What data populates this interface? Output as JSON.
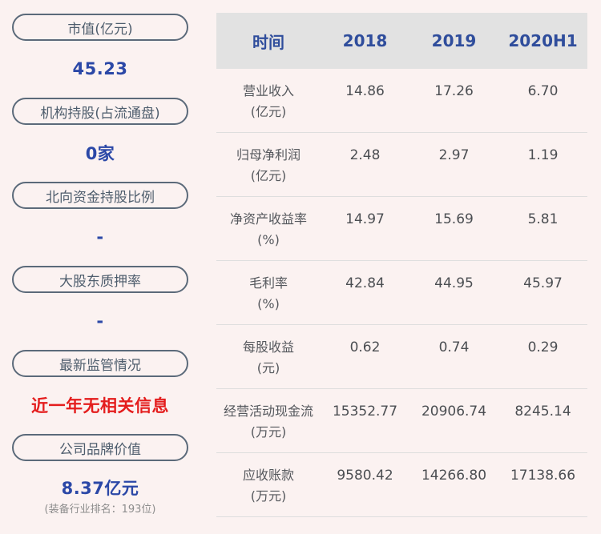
{
  "sidebar": {
    "stats": [
      {
        "label": "市值(亿元)",
        "value": "45.23"
      },
      {
        "label": "机构持股(占流通盘)",
        "value": "0家"
      },
      {
        "label": "北向资金持股比例",
        "value": "-"
      },
      {
        "label": "大股东质押率",
        "value": "-"
      },
      {
        "label": "最新监管情况",
        "value": "近一年无相关信息"
      },
      {
        "label": "公司品牌价值",
        "value": "8.37亿元",
        "note": "(装备行业排名：193位)"
      }
    ]
  },
  "table": {
    "header": [
      "时间",
      "2018",
      "2019",
      "2020H1"
    ],
    "rows": [
      {
        "name": "营业收入",
        "unit": "(亿元)",
        "values": [
          "14.86",
          "17.26",
          "6.70"
        ]
      },
      {
        "name": "归母净利润",
        "unit": "(亿元)",
        "values": [
          "2.48",
          "2.97",
          "1.19"
        ]
      },
      {
        "name": "净资产收益率",
        "unit": "(%)",
        "values": [
          "14.97",
          "15.69",
          "5.81"
        ]
      },
      {
        "name": "毛利率",
        "unit": "(%)",
        "values": [
          "42.84",
          "44.95",
          "45.97"
        ]
      },
      {
        "name": "每股收益",
        "unit": "(元)",
        "values": [
          "0.62",
          "0.74",
          "0.29"
        ]
      },
      {
        "name": "经营活动现金流",
        "unit": "(万元)",
        "values": [
          "15352.77",
          "20906.74",
          "8245.14"
        ]
      },
      {
        "name": "应收账款",
        "unit": "(万元)",
        "values": [
          "9580.42",
          "14266.80",
          "17138.66"
        ]
      }
    ]
  },
  "chart_data": {
    "type": "table",
    "columns": [
      "时间",
      "2018",
      "2019",
      "2020H1"
    ],
    "rows": [
      [
        "营业收入(亿元)",
        14.86,
        17.26,
        6.7
      ],
      [
        "归母净利润(亿元)",
        2.48,
        2.97,
        1.19
      ],
      [
        "净资产收益率(%)",
        14.97,
        15.69,
        5.81
      ],
      [
        "毛利率(%)",
        42.84,
        44.95,
        45.97
      ],
      [
        "每股收益(元)",
        0.62,
        0.74,
        0.29
      ],
      [
        "经营活动现金流(万元)",
        15352.77,
        20906.74,
        8245.14
      ],
      [
        "应收账款(万元)",
        9580.42,
        14266.8,
        17138.66
      ]
    ],
    "side_stats": {
      "市值(亿元)": "45.23",
      "机构持股(占流通盘)": "0家",
      "北向资金持股比例": "-",
      "大股东质押率": "-",
      "最新监管情况": "近一年无相关信息",
      "公司品牌价值": "8.37亿元",
      "公司品牌价值备注": "(装备行业排名：193位)"
    }
  },
  "colors": {
    "background": "#fbf2f1",
    "table_header_bg": "#e2e2e2",
    "table_header_text": "#2f4d9c",
    "stat_value_blue": "#2b48a7",
    "alert_red": "#e41d1d",
    "pill_border": "#5b6a7a",
    "pill_text": "#4e5d6d",
    "table_text": "#4b4e52",
    "note_gray": "#8d8d8d",
    "divider": "#dedede"
  }
}
